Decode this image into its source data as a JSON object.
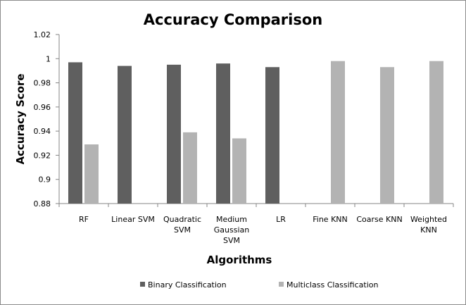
{
  "chart_data": {
    "type": "bar",
    "title": "Accuracy Comparison",
    "xlabel": "Algorithms",
    "ylabel": "Accuracy Score",
    "ylim": [
      0.88,
      1.02
    ],
    "yticks": [
      "0.88",
      "0.9",
      "0.92",
      "0.94",
      "0.96",
      "0.98",
      "1",
      "1.02"
    ],
    "categories": [
      [
        "RF"
      ],
      [
        "Linear SVM"
      ],
      [
        "Quadratic",
        "SVM"
      ],
      [
        "Medium",
        "Gaussian",
        "SVM"
      ],
      [
        "LR"
      ],
      [
        "Fine KNN"
      ],
      [
        "Coarse KNN"
      ],
      [
        "Weighted",
        "KNN"
      ]
    ],
    "series": [
      {
        "name": "Binary Classification",
        "color": "#5f5f5f",
        "values": [
          0.997,
          0.994,
          0.995,
          0.996,
          0.993,
          null,
          null,
          null
        ]
      },
      {
        "name": "Multiclass Classification",
        "color": "#b3b3b3",
        "values": [
          0.929,
          null,
          0.939,
          0.934,
          null,
          0.998,
          0.993,
          0.998
        ]
      }
    ],
    "grid": false,
    "legend_position": "bottom"
  }
}
